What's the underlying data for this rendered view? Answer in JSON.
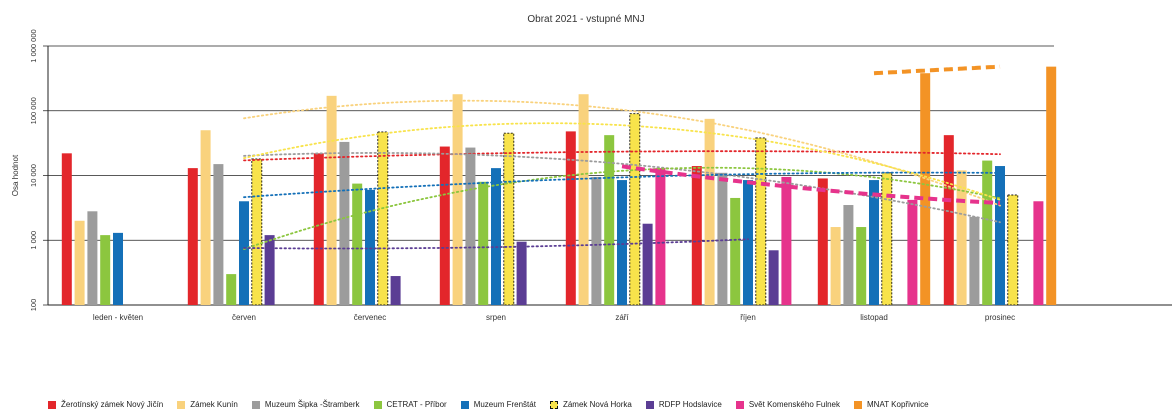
{
  "chart_data": {
    "type": "bar",
    "title": "Obrat 2021 - vstupné MNJ",
    "ylabel": "Osa hodnot",
    "xlabel": "",
    "yscale": "log",
    "ylim": [
      100,
      1000000
    ],
    "yticks": [
      100,
      1000,
      10000,
      100000,
      1000000
    ],
    "ytick_labels": [
      "100",
      "1 000",
      "10 000",
      "100 000",
      "1 000 000"
    ],
    "grid": false,
    "legend_position": "bottom",
    "categories": [
      "leden - květen",
      "červen",
      "červenec",
      "srpen",
      "září",
      "říjen",
      "listopad",
      "prosinec"
    ],
    "series": [
      {
        "name": "Žerotínský zámek Nový Jičín",
        "color": "#e3262b",
        "values": [
          22000,
          13000,
          22000,
          28000,
          48000,
          14000,
          9000,
          42000
        ]
      },
      {
        "name": "Zámek Kunín",
        "color": "#f9d27d",
        "values": [
          2000,
          50000,
          170000,
          180000,
          180000,
          75000,
          1600,
          12000
        ]
      },
      {
        "name": "Muzeum Šipka -Štramberk",
        "color": "#9c9c9c",
        "values": [
          2800,
          15000,
          33000,
          27000,
          9500,
          11000,
          3500,
          2300
        ]
      },
      {
        "name": "CETRAT - Příbor",
        "color": "#8cc63f",
        "values": [
          1200,
          300,
          7500,
          8000,
          42000,
          4500,
          1600,
          17000
        ]
      },
      {
        "name": "Muzeum Frenštát",
        "color": "#1470b8",
        "values": [
          1300,
          4000,
          6000,
          13000,
          8500,
          8500,
          8500,
          14000
        ]
      },
      {
        "name": "Zámek Nová Horka",
        "color": "#f8e34b",
        "values": [
          null,
          18000,
          47000,
          45000,
          90000,
          38000,
          11000,
          5000
        ]
      },
      {
        "name": "RDFP Hodslavice",
        "color": "#5b3d94",
        "values": [
          null,
          1200,
          280,
          950,
          1800,
          700,
          null,
          null
        ]
      },
      {
        "name": "Svět Komenského Fulnek",
        "color": "#e6338c",
        "values": [
          null,
          null,
          null,
          null,
          13000,
          9500,
          4200,
          4000
        ]
      },
      {
        "name": "MNAT Kopřivnice",
        "color": "#f39325",
        "values": [
          null,
          null,
          null,
          null,
          null,
          null,
          380000,
          480000
        ]
      }
    ]
  }
}
